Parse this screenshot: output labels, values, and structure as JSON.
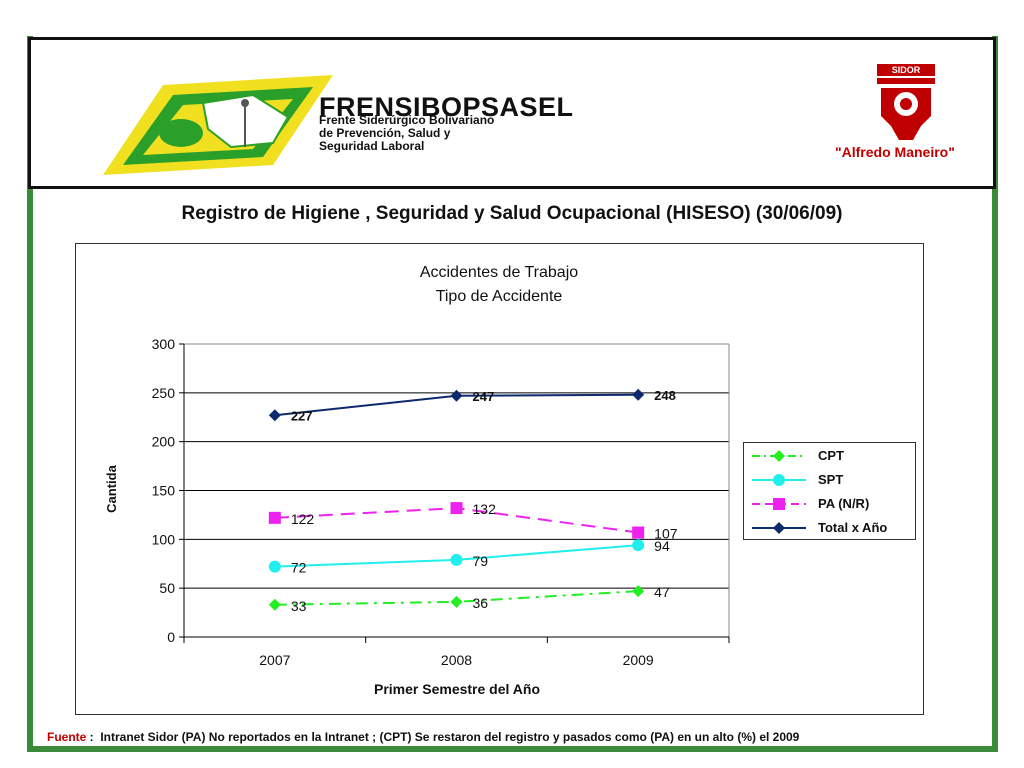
{
  "header": {
    "org_name": "FRENSIBOPSASEL",
    "org_sub": [
      "Frente Siderúrgico Bolivariano",
      "de Prevención, Salud y",
      "Seguridad Laboral"
    ],
    "sidor_logo_text": "SIDOR",
    "sidor_caption": "\"Alfredo Maneiro\""
  },
  "slide": {
    "title": "Registro de Higiene , Seguridad y Salud Ocupacional (HISESO) (30/06/09)"
  },
  "chart_data": {
    "type": "line",
    "title": [
      "Accidentes de Trabajo",
      "Tipo de Accidente"
    ],
    "xlabel": "Primer Semestre del Año",
    "ylabel": "Cantida",
    "categories": [
      "2007",
      "2008",
      "2009"
    ],
    "ylim": [
      0,
      300
    ],
    "yticks": [
      0,
      50,
      100,
      150,
      200,
      250,
      300
    ],
    "grid": true,
    "legend_position": "right",
    "series": [
      {
        "name": "CPT",
        "values": [
          33,
          36,
          47
        ],
        "color": "#22ee22",
        "marker": "diamond",
        "dash": "dashdot"
      },
      {
        "name": "SPT",
        "values": [
          72,
          79,
          94
        ],
        "color": "#22eeee",
        "marker": "circle",
        "dash": "solid"
      },
      {
        "name": "PA (N/R)",
        "values": [
          122,
          132,
          107
        ],
        "color": "#ee22ee",
        "marker": "square",
        "dash": "dash"
      },
      {
        "name": "Total x Año",
        "values": [
          227,
          247,
          248
        ],
        "color": "#0d2a6e",
        "marker": "diamond",
        "dash": "solid",
        "bold_labels": true
      }
    ]
  },
  "footer": {
    "source_label": "Fuente",
    "source_text": "Intranet Sidor (PA) No reportados en la Intranet ; (CPT) Se restaron del registro y pasados como (PA) en un alto (%) el 2009"
  },
  "colors": {
    "frame_green": "#3a8a3a",
    "accent_red": "#c00000",
    "logo_yellow": "#f0e020",
    "logo_green": "#2aa02a"
  }
}
